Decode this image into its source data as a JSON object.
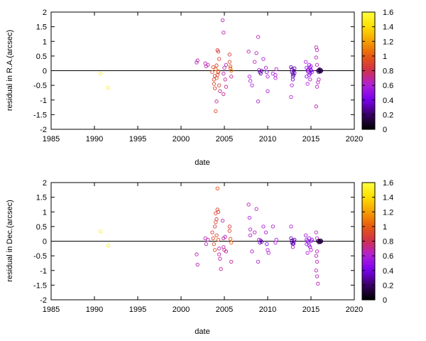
{
  "figure": {
    "colorbar_ticks": [
      "0",
      "0.2",
      "0.4",
      "0.6",
      "0.8",
      "1",
      "1.2",
      "1.4",
      "1.6"
    ],
    "colormap": [
      "#000000",
      "#3a0066",
      "#7a00ee",
      "#b020d8",
      "#d0304a",
      "#e85a10",
      "#f5a000",
      "#ffe000",
      "#ffff40"
    ]
  },
  "chart_data": [
    {
      "type": "scatter",
      "title": "",
      "xlabel": "date",
      "ylabel": "residual in R.A.(arcsec)",
      "xlim": [
        1985,
        2020
      ],
      "ylim": [
        -2,
        2
      ],
      "x_ticks": [
        "1985",
        "1990",
        "1995",
        "2000",
        "2005",
        "2010",
        "2015",
        "2020"
      ],
      "y_ticks": [
        "-2",
        "-1.5",
        "-1",
        "-0.5",
        "0",
        "0.5",
        "1",
        "1.5",
        "2"
      ],
      "reference_line_y": 0,
      "colorbar_range": [
        0,
        1.6
      ],
      "points": [
        [
          1990.7,
          -0.1,
          1.5
        ],
        [
          1991.6,
          -0.58,
          1.5
        ],
        [
          2001.8,
          0.28,
          0.65
        ],
        [
          2001.9,
          0.35,
          0.65
        ],
        [
          2002.8,
          0.25,
          0.65
        ],
        [
          2002.9,
          0.15,
          0.65
        ],
        [
          2003.1,
          0.2,
          0.65
        ],
        [
          2003.6,
          -0.05,
          0.9
        ],
        [
          2003.7,
          0.12,
          0.9
        ],
        [
          2003.8,
          -0.3,
          0.9
        ],
        [
          2003.8,
          -0.45,
          0.9
        ],
        [
          2003.9,
          -0.6,
          0.9
        ],
        [
          2003.9,
          -0.18,
          0.9
        ],
        [
          2004.0,
          -1.38,
          0.95
        ],
        [
          2004.0,
          0.05,
          1.0
        ],
        [
          2004.1,
          -0.25,
          0.9
        ],
        [
          2004.1,
          0.18,
          0.9
        ],
        [
          2004.2,
          -0.15,
          0.9
        ],
        [
          2004.2,
          0.7,
          0.85
        ],
        [
          2004.3,
          0.65,
          0.85
        ],
        [
          2004.3,
          -0.05,
          0.85
        ],
        [
          2004.3,
          -0.02,
          1.05
        ],
        [
          2004.4,
          0.4,
          0.9
        ],
        [
          2004.4,
          -0.5,
          0.85
        ],
        [
          2004.5,
          -0.7,
          0.7
        ],
        [
          2004.1,
          -1.05,
          0.7
        ],
        [
          2004.8,
          1.72,
          0.65
        ],
        [
          2004.9,
          1.3,
          0.65
        ],
        [
          2004.9,
          -0.1,
          0.65
        ],
        [
          2004.9,
          -0.8,
          0.7
        ],
        [
          2005.0,
          0.1,
          0.65
        ],
        [
          2005.1,
          -0.3,
          0.7
        ],
        [
          2005.2,
          0.2,
          0.65
        ],
        [
          2005.2,
          -0.55,
          0.7
        ],
        [
          2005.6,
          0.55,
          0.85
        ],
        [
          2005.6,
          0.3,
          0.9
        ],
        [
          2005.7,
          0.15,
          0.95
        ],
        [
          2005.7,
          0.08,
          1.0
        ],
        [
          2005.8,
          0.0,
          1.05
        ],
        [
          2005.8,
          -0.2,
          0.7
        ],
        [
          2007.8,
          0.65,
          0.65
        ],
        [
          2007.9,
          -0.2,
          0.6
        ],
        [
          2008.0,
          -0.35,
          0.6
        ],
        [
          2008.2,
          -0.5,
          0.6
        ],
        [
          2008.5,
          0.3,
          0.65
        ],
        [
          2008.7,
          0.6,
          0.65
        ],
        [
          2008.9,
          1.15,
          0.65
        ],
        [
          2008.9,
          -1.05,
          0.6
        ],
        [
          2009.0,
          0.02,
          0.55
        ],
        [
          2009.1,
          -0.05,
          0.3
        ],
        [
          2009.2,
          -0.1,
          0.3
        ],
        [
          2009.3,
          0.0,
          0.3
        ],
        [
          2009.5,
          0.4,
          0.6
        ],
        [
          2009.8,
          0.1,
          0.6
        ],
        [
          2009.9,
          -0.05,
          0.4
        ],
        [
          2010.0,
          -0.2,
          0.6
        ],
        [
          2010.0,
          -0.7,
          0.6
        ],
        [
          2010.6,
          -0.1,
          0.6
        ],
        [
          2010.9,
          -0.15,
          0.6
        ],
        [
          2010.9,
          -0.25,
          0.6
        ],
        [
          2011.0,
          0.05,
          0.6
        ],
        [
          2012.7,
          0.12,
          0.3
        ],
        [
          2012.8,
          0.05,
          0.3
        ],
        [
          2012.8,
          -0.05,
          0.3
        ],
        [
          2012.9,
          -0.1,
          0.3
        ],
        [
          2012.9,
          -0.2,
          0.3
        ],
        [
          2013.0,
          0.0,
          0.3
        ],
        [
          2013.0,
          -0.15,
          0.3
        ],
        [
          2013.1,
          0.08,
          0.3
        ],
        [
          2013.1,
          -0.08,
          0.3
        ],
        [
          2012.8,
          -0.5,
          0.6
        ],
        [
          2012.7,
          -0.9,
          0.6
        ],
        [
          2012.9,
          -0.3,
          0.4
        ],
        [
          2014.4,
          0.3,
          0.6
        ],
        [
          2014.5,
          0.1,
          0.5
        ],
        [
          2014.5,
          -0.2,
          0.5
        ],
        [
          2014.6,
          0.0,
          0.5
        ],
        [
          2014.7,
          0.05,
          0.5
        ],
        [
          2014.7,
          -0.05,
          0.5
        ],
        [
          2014.8,
          0.2,
          0.5
        ],
        [
          2014.8,
          -0.15,
          0.5
        ],
        [
          2014.9,
          0.1,
          0.5
        ],
        [
          2014.9,
          -0.1,
          0.5
        ],
        [
          2015.0,
          0.0,
          0.5
        ],
        [
          2015.0,
          0.15,
          0.5
        ],
        [
          2014.6,
          -0.45,
          0.6
        ],
        [
          2014.9,
          -0.3,
          0.6
        ],
        [
          2015.0,
          0.02,
          0.4
        ],
        [
          2015.1,
          -0.05,
          0.4
        ],
        [
          2015.6,
          0.8,
          0.65
        ],
        [
          2015.7,
          0.7,
          0.65
        ],
        [
          2015.6,
          0.45,
          0.65
        ],
        [
          2015.7,
          0.2,
          0.65
        ],
        [
          2015.8,
          -0.4,
          0.65
        ],
        [
          2015.6,
          -1.22,
          0.65
        ],
        [
          2015.7,
          -0.55,
          0.65
        ],
        [
          2015.9,
          -0.3,
          0.65
        ],
        [
          2015.8,
          0.0,
          0.2
        ],
        [
          2015.9,
          0.02,
          0.15
        ],
        [
          2016.0,
          -0.02,
          0.1
        ],
        [
          2016.0,
          0.0,
          0.05
        ],
        [
          2016.1,
          0.03,
          0.1
        ],
        [
          2016.1,
          -0.03,
          0.15
        ],
        [
          2016.2,
          0.0,
          0.1
        ],
        [
          2015.9,
          -0.05,
          0.2
        ],
        [
          2016.0,
          0.05,
          0.2
        ]
      ]
    },
    {
      "type": "scatter",
      "title": "",
      "xlabel": "date",
      "ylabel": "residual in Dec.(arcsec)",
      "xlim": [
        1985,
        2020
      ],
      "ylim": [
        -2,
        2
      ],
      "x_ticks": [
        "1985",
        "1990",
        "1995",
        "2000",
        "2005",
        "2010",
        "2015",
        "2020"
      ],
      "y_ticks": [
        "-2",
        "-1.5",
        "-1",
        "-0.5",
        "0",
        "0.5",
        "1",
        "1.5",
        "2"
      ],
      "reference_line_y": 0,
      "colorbar_range": [
        0,
        1.6
      ],
      "points": [
        [
          1990.7,
          0.33,
          1.5
        ],
        [
          1991.6,
          -0.15,
          1.5
        ],
        [
          2001.8,
          -0.45,
          0.65
        ],
        [
          2001.9,
          -0.8,
          0.65
        ],
        [
          2002.8,
          0.1,
          0.65
        ],
        [
          2002.9,
          -0.1,
          0.65
        ],
        [
          2003.1,
          0.05,
          0.65
        ],
        [
          2003.6,
          0.3,
          0.9
        ],
        [
          2003.7,
          0.1,
          0.9
        ],
        [
          2003.8,
          -0.1,
          0.9
        ],
        [
          2003.9,
          -0.3,
          0.9
        ],
        [
          2003.9,
          0.5,
          0.85
        ],
        [
          2004.0,
          0.95,
          0.9
        ],
        [
          2004.0,
          0.65,
          0.9
        ],
        [
          2004.1,
          0.75,
          0.85
        ],
        [
          2004.1,
          0.2,
          0.9
        ],
        [
          2004.2,
          1.8,
          0.95
        ],
        [
          2004.2,
          1.08,
          0.9
        ],
        [
          2004.3,
          1.0,
          0.85
        ],
        [
          2004.3,
          0.05,
          1.0
        ],
        [
          2004.4,
          -0.25,
          0.65
        ],
        [
          2004.4,
          -0.45,
          0.65
        ],
        [
          2004.5,
          -0.6,
          0.65
        ],
        [
          2004.6,
          -0.95,
          0.7
        ],
        [
          2004.8,
          0.7,
          0.65
        ],
        [
          2004.9,
          0.1,
          0.65
        ],
        [
          2004.9,
          -0.2,
          0.65
        ],
        [
          2005.0,
          -0.3,
          0.7
        ],
        [
          2005.1,
          0.15,
          0.65
        ],
        [
          2005.2,
          -0.35,
          0.7
        ],
        [
          2005.6,
          0.5,
          0.85
        ],
        [
          2005.6,
          0.35,
          0.9
        ],
        [
          2005.7,
          0.08,
          0.95
        ],
        [
          2005.8,
          -0.05,
          1.0
        ],
        [
          2005.8,
          -0.7,
          0.7
        ],
        [
          2007.8,
          1.25,
          0.65
        ],
        [
          2007.9,
          0.8,
          0.6
        ],
        [
          2008.0,
          0.4,
          0.6
        ],
        [
          2008.0,
          0.2,
          0.6
        ],
        [
          2008.2,
          -0.35,
          0.6
        ],
        [
          2008.5,
          0.3,
          0.65
        ],
        [
          2008.7,
          1.1,
          0.65
        ],
        [
          2008.9,
          -0.7,
          0.6
        ],
        [
          2009.0,
          0.05,
          0.55
        ],
        [
          2009.1,
          -0.05,
          0.3
        ],
        [
          2009.2,
          0.02,
          0.3
        ],
        [
          2009.3,
          -0.02,
          0.3
        ],
        [
          2009.5,
          0.5,
          0.6
        ],
        [
          2009.8,
          0.3,
          0.6
        ],
        [
          2009.9,
          -0.1,
          0.4
        ],
        [
          2010.0,
          -0.3,
          0.6
        ],
        [
          2010.1,
          -0.4,
          0.6
        ],
        [
          2010.6,
          0.5,
          0.6
        ],
        [
          2010.9,
          -0.05,
          0.6
        ],
        [
          2011.0,
          0.05,
          0.6
        ],
        [
          2012.7,
          0.1,
          0.3
        ],
        [
          2012.8,
          0.02,
          0.3
        ],
        [
          2012.8,
          -0.05,
          0.3
        ],
        [
          2012.9,
          -0.1,
          0.3
        ],
        [
          2013.0,
          0.0,
          0.3
        ],
        [
          2013.0,
          -0.08,
          0.3
        ],
        [
          2013.1,
          0.05,
          0.3
        ],
        [
          2012.7,
          0.5,
          0.6
        ],
        [
          2012.9,
          -0.2,
          0.6
        ],
        [
          2014.4,
          0.2,
          0.6
        ],
        [
          2014.5,
          0.05,
          0.5
        ],
        [
          2014.5,
          -0.1,
          0.5
        ],
        [
          2014.6,
          0.0,
          0.5
        ],
        [
          2014.7,
          -0.05,
          0.5
        ],
        [
          2014.8,
          -0.15,
          0.5
        ],
        [
          2014.8,
          0.1,
          0.5
        ],
        [
          2014.9,
          -0.2,
          0.5
        ],
        [
          2015.0,
          0.0,
          0.5
        ],
        [
          2015.0,
          -0.3,
          0.6
        ],
        [
          2014.6,
          -0.4,
          0.6
        ],
        [
          2015.1,
          0.05,
          0.4
        ],
        [
          2015.6,
          0.3,
          0.65
        ],
        [
          2015.7,
          0.1,
          0.65
        ],
        [
          2015.6,
          -0.5,
          0.65
        ],
        [
          2015.7,
          -0.7,
          0.65
        ],
        [
          2015.6,
          -1.0,
          0.65
        ],
        [
          2015.7,
          -1.2,
          0.65
        ],
        [
          2015.8,
          -1.45,
          0.65
        ],
        [
          2015.7,
          -0.35,
          0.65
        ],
        [
          2015.8,
          0.0,
          0.2
        ],
        [
          2015.9,
          0.02,
          0.15
        ],
        [
          2016.0,
          -0.02,
          0.1
        ],
        [
          2016.0,
          0.0,
          0.05
        ],
        [
          2016.1,
          0.03,
          0.1
        ],
        [
          2016.1,
          -0.03,
          0.15
        ],
        [
          2016.2,
          0.0,
          0.1
        ],
        [
          2015.9,
          -0.04,
          0.2
        ]
      ]
    }
  ]
}
